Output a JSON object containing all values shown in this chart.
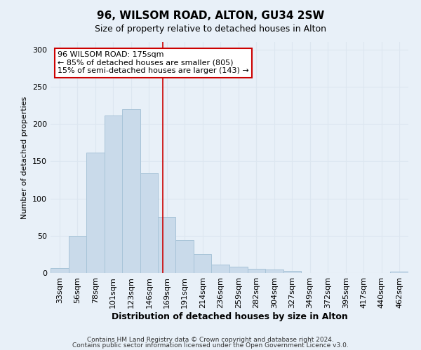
{
  "title": "96, WILSOM ROAD, ALTON, GU34 2SW",
  "subtitle": "Size of property relative to detached houses in Alton",
  "xlabel": "Distribution of detached houses by size in Alton",
  "ylabel": "Number of detached properties",
  "bar_edges": [
    33,
    56,
    78,
    101,
    123,
    146,
    169,
    191,
    214,
    236,
    259,
    282,
    304,
    327,
    349,
    372,
    395,
    417,
    440,
    462,
    485
  ],
  "bar_values": [
    7,
    50,
    162,
    211,
    220,
    134,
    75,
    44,
    25,
    11,
    8,
    6,
    5,
    3,
    0,
    0,
    0,
    0,
    0,
    2
  ],
  "bar_color": "#c9daea",
  "bar_edge_color": "#a8c4d8",
  "grid_color": "#dce6f0",
  "vline_x": 175,
  "vline_color": "#cc0000",
  "annotation_text": "96 WILSOM ROAD: 175sqm\n← 85% of detached houses are smaller (805)\n15% of semi-detached houses are larger (143) →",
  "annotation_box_color": "#ffffff",
  "annotation_box_edge": "#cc0000",
  "footer1": "Contains HM Land Registry data © Crown copyright and database right 2024.",
  "footer2": "Contains public sector information licensed under the Open Government Licence v3.0.",
  "ylim": [
    0,
    310
  ],
  "background_color": "#e8f0f8"
}
